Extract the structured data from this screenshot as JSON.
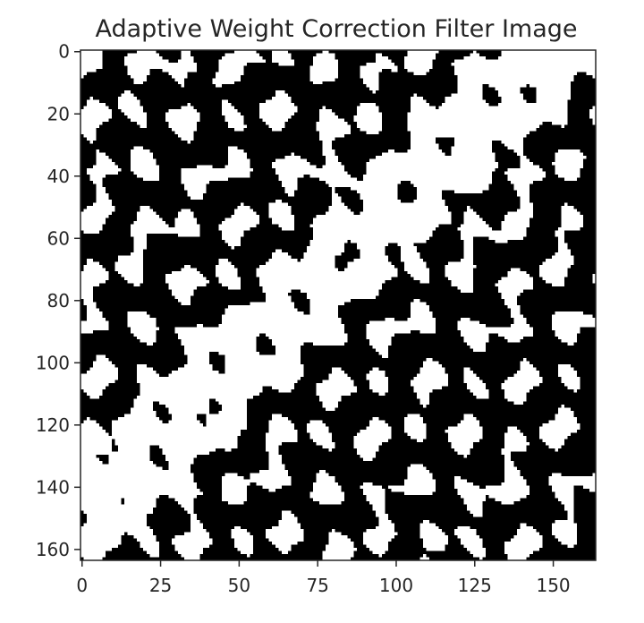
{
  "chart_data": {
    "type": "heatmap",
    "title": "Adaptive Weight Correction Filter Image",
    "xlabel": "",
    "ylabel": "",
    "colormap": "binary",
    "colors": {
      "low": "#000000",
      "high": "#ffffff",
      "axis": "#262626"
    },
    "grid": false,
    "shape": [
      164,
      164
    ],
    "xlim": [
      -0.5,
      163.5
    ],
    "ylim": [
      163.5,
      -0.5
    ],
    "x_ticks": [
      0,
      25,
      50,
      75,
      100,
      125,
      150
    ],
    "x_tick_labels": [
      "0",
      "25",
      "50",
      "75",
      "100",
      "125",
      "150"
    ],
    "y_ticks": [
      0,
      20,
      40,
      60,
      80,
      100,
      120,
      140,
      160
    ],
    "y_tick_labels": [
      "0",
      "20",
      "40",
      "60",
      "80",
      "100",
      "120",
      "140",
      "160"
    ],
    "pattern": "binary speckle texture with a bright diagonal ridge from lower-left to upper-right"
  }
}
